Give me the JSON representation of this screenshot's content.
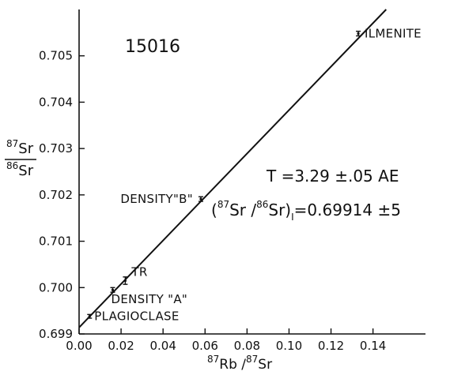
{
  "chart_data": {
    "type": "scatter",
    "sample_label": "15016",
    "xlim": [
      0.0,
      0.165
    ],
    "ylim": [
      0.699,
      0.706
    ],
    "x_ticks": [
      "0.00",
      "0.02",
      "0.04",
      "0.06",
      "0.08",
      "0.10",
      "0.12",
      "0.14"
    ],
    "x_tick_values": [
      0.0,
      0.02,
      0.04,
      0.06,
      0.08,
      0.1,
      0.12,
      0.14
    ],
    "y_ticks": [
      "0.699",
      "0.700",
      "0.701",
      "0.702",
      "0.703",
      "0.704",
      "0.705"
    ],
    "y_tick_values": [
      0.699,
      0.7,
      0.701,
      0.702,
      0.703,
      0.704,
      0.705
    ],
    "points": [
      {
        "label": "PLAGIOCLASE",
        "x": 0.005,
        "y": 0.69938,
        "err": 4e-05
      },
      {
        "label": "DENSITY \"A\"",
        "x": 0.016,
        "y": 0.69995,
        "err": 5e-05
      },
      {
        "label": "TR",
        "x": 0.022,
        "y": 0.70015,
        "err": 8e-05
      },
      {
        "label": "DENSITY\"B\"",
        "x": 0.058,
        "y": 0.70191,
        "err": 5e-05
      },
      {
        "label": "ILMENITE",
        "x": 0.133,
        "y": 0.70548,
        "err": 5e-05
      }
    ],
    "isochron": {
      "intercept": 0.69914,
      "slope": 0.0469
    },
    "annotation_age": "T =3.29 ±.05 AE",
    "annotation_ratio": {
      "sup1": "87",
      "sr1": "Sr /",
      "sup2": "86",
      "sr2": "Sr)",
      "sub": "I",
      "value": "=0.69914 ±5"
    },
    "xlabel": {
      "sup1": "87",
      "t1": "Rb /",
      "sup2": "87",
      "t2": "Sr"
    },
    "ylabel": {
      "sup_num": "87",
      "num": "Sr",
      "sup_den": "86",
      "den": "Sr"
    }
  }
}
